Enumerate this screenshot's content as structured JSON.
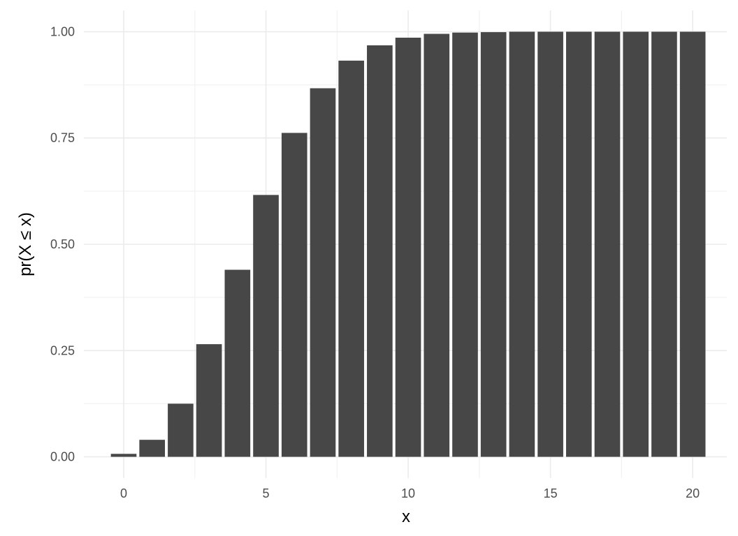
{
  "chart_data": {
    "type": "bar",
    "title": "",
    "xlabel": "x",
    "ylabel": "pr(X ≤ x)",
    "x": [
      0,
      1,
      2,
      3,
      4,
      5,
      6,
      7,
      8,
      9,
      10,
      11,
      12,
      13,
      14,
      15,
      16,
      17,
      18,
      19,
      20
    ],
    "values": [
      0.007,
      0.04,
      0.125,
      0.265,
      0.44,
      0.616,
      0.762,
      0.867,
      0.932,
      0.968,
      0.986,
      0.995,
      0.998,
      0.999,
      1.0,
      1.0,
      1.0,
      1.0,
      1.0,
      1.0,
      1.0
    ],
    "xlim": [
      -1.4,
      21.2
    ],
    "ylim": [
      -0.05,
      1.05
    ],
    "x_ticks": [
      0,
      5,
      10,
      15,
      20
    ],
    "x_tick_labels": [
      "0",
      "5",
      "10",
      "15",
      "20"
    ],
    "y_ticks": [
      0,
      0.25,
      0.5,
      0.75,
      1
    ],
    "y_tick_labels": [
      "0.00",
      "0.25",
      "0.50",
      "0.75",
      "1.00"
    ],
    "grid": true,
    "legend": "none",
    "bar_color": "#474747",
    "bar_width": 0.9
  }
}
